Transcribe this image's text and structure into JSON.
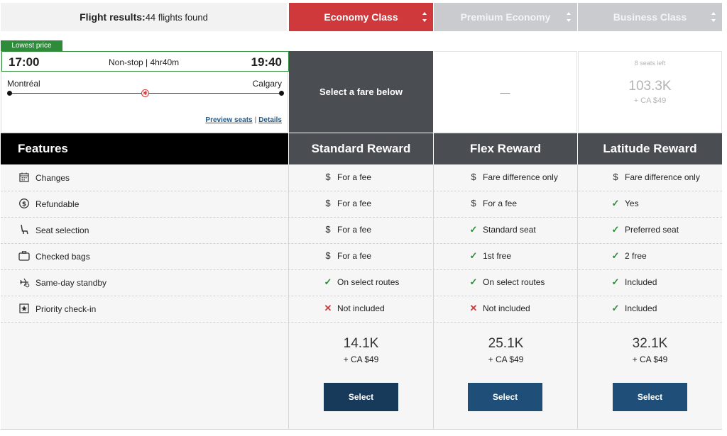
{
  "header": {
    "results_label": "Flight results:",
    "results_count": "44 flights found",
    "cabins": [
      {
        "label": "Economy Class",
        "active": true
      },
      {
        "label": "Premium Economy",
        "active": false
      },
      {
        "label": "Business Class",
        "active": false
      }
    ]
  },
  "flight": {
    "badge": "Lowest price",
    "depart_time": "17:00",
    "arrive_time": "19:40",
    "stops_duration": "Non-stop | 4hr40m",
    "origin": "Montréal",
    "destination": "Calgary",
    "preview_seats": "Preview seats",
    "separator": "|",
    "details": "Details"
  },
  "fares": {
    "economy_prompt": "Select a fare below",
    "premium_value": "—",
    "business": {
      "seats_left": "8 seats left",
      "points": "103.3K",
      "tax": "+ CA $49"
    }
  },
  "table": {
    "features_heading": "Features",
    "columns": [
      "Standard Reward",
      "Flex Reward",
      "Latitude Reward"
    ],
    "rows": [
      {
        "icon": "calendar-icon",
        "label": "Changes",
        "cells": [
          {
            "icon": "dollar",
            "text": "For a fee"
          },
          {
            "icon": "dollar",
            "text": "Fare difference only"
          },
          {
            "icon": "dollar",
            "text": "Fare difference only"
          }
        ]
      },
      {
        "icon": "refund-icon",
        "label": "Refundable",
        "cells": [
          {
            "icon": "dollar",
            "text": "For a fee"
          },
          {
            "icon": "dollar",
            "text": "For a fee"
          },
          {
            "icon": "check",
            "text": "Yes"
          }
        ]
      },
      {
        "icon": "seat-icon",
        "label": "Seat selection",
        "cells": [
          {
            "icon": "dollar",
            "text": "For a fee"
          },
          {
            "icon": "check",
            "text": "Standard seat"
          },
          {
            "icon": "check",
            "text": "Preferred seat"
          }
        ]
      },
      {
        "icon": "suitcase-icon",
        "label": "Checked bags",
        "cells": [
          {
            "icon": "dollar",
            "text": "For a fee"
          },
          {
            "icon": "check",
            "text": "1st free"
          },
          {
            "icon": "check",
            "text": "2 free"
          }
        ]
      },
      {
        "icon": "standby-plane-icon",
        "label": "Same-day standby",
        "cells": [
          {
            "icon": "check",
            "text": "On select routes"
          },
          {
            "icon": "check",
            "text": "On select routes"
          },
          {
            "icon": "check",
            "text": "Included"
          }
        ]
      },
      {
        "icon": "star-icon",
        "label": "Priority check-in",
        "cells": [
          {
            "icon": "cross",
            "text": "Not included"
          },
          {
            "icon": "cross",
            "text": "Not included"
          },
          {
            "icon": "check",
            "text": "Included"
          }
        ]
      }
    ],
    "prices": [
      {
        "points": "14.1K",
        "tax": "+ CA $49",
        "button": "Select"
      },
      {
        "points": "25.1K",
        "tax": "+ CA $49",
        "button": "Select"
      },
      {
        "points": "32.1K",
        "tax": "+ CA $49",
        "button": "Select"
      }
    ]
  },
  "colors": {
    "brand_red": "#d0393b",
    "green": "#2e8b3a",
    "dark_slate": "#4a4d52",
    "button_blue": "#1f4f78"
  }
}
